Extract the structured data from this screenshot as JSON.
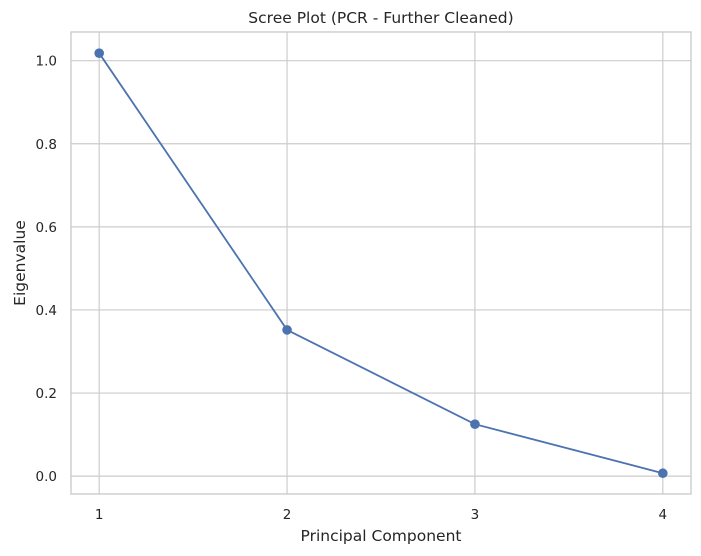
{
  "chart_data": {
    "type": "line",
    "title": "Scree Plot (PCR - Further Cleaned)",
    "xlabel": "Principal Component",
    "ylabel": "Eigenvalue",
    "x": [
      1,
      2,
      3,
      4
    ],
    "x_tick_labels": [
      "1",
      "2",
      "3",
      "4"
    ],
    "y_ticks": [
      0.0,
      0.2,
      0.4,
      0.6,
      0.8,
      1.0
    ],
    "y_tick_labels": [
      "0.0",
      "0.2",
      "0.4",
      "0.6",
      "0.8",
      "1.0"
    ],
    "series": [
      {
        "values": [
          1.018,
          0.352,
          0.125,
          0.007
        ],
        "color": "#4c72b0",
        "marker": "circle"
      }
    ],
    "xlim": [
      0.85,
      4.15
    ],
    "ylim": [
      -0.043,
      1.069
    ],
    "grid": true,
    "legend": false
  }
}
